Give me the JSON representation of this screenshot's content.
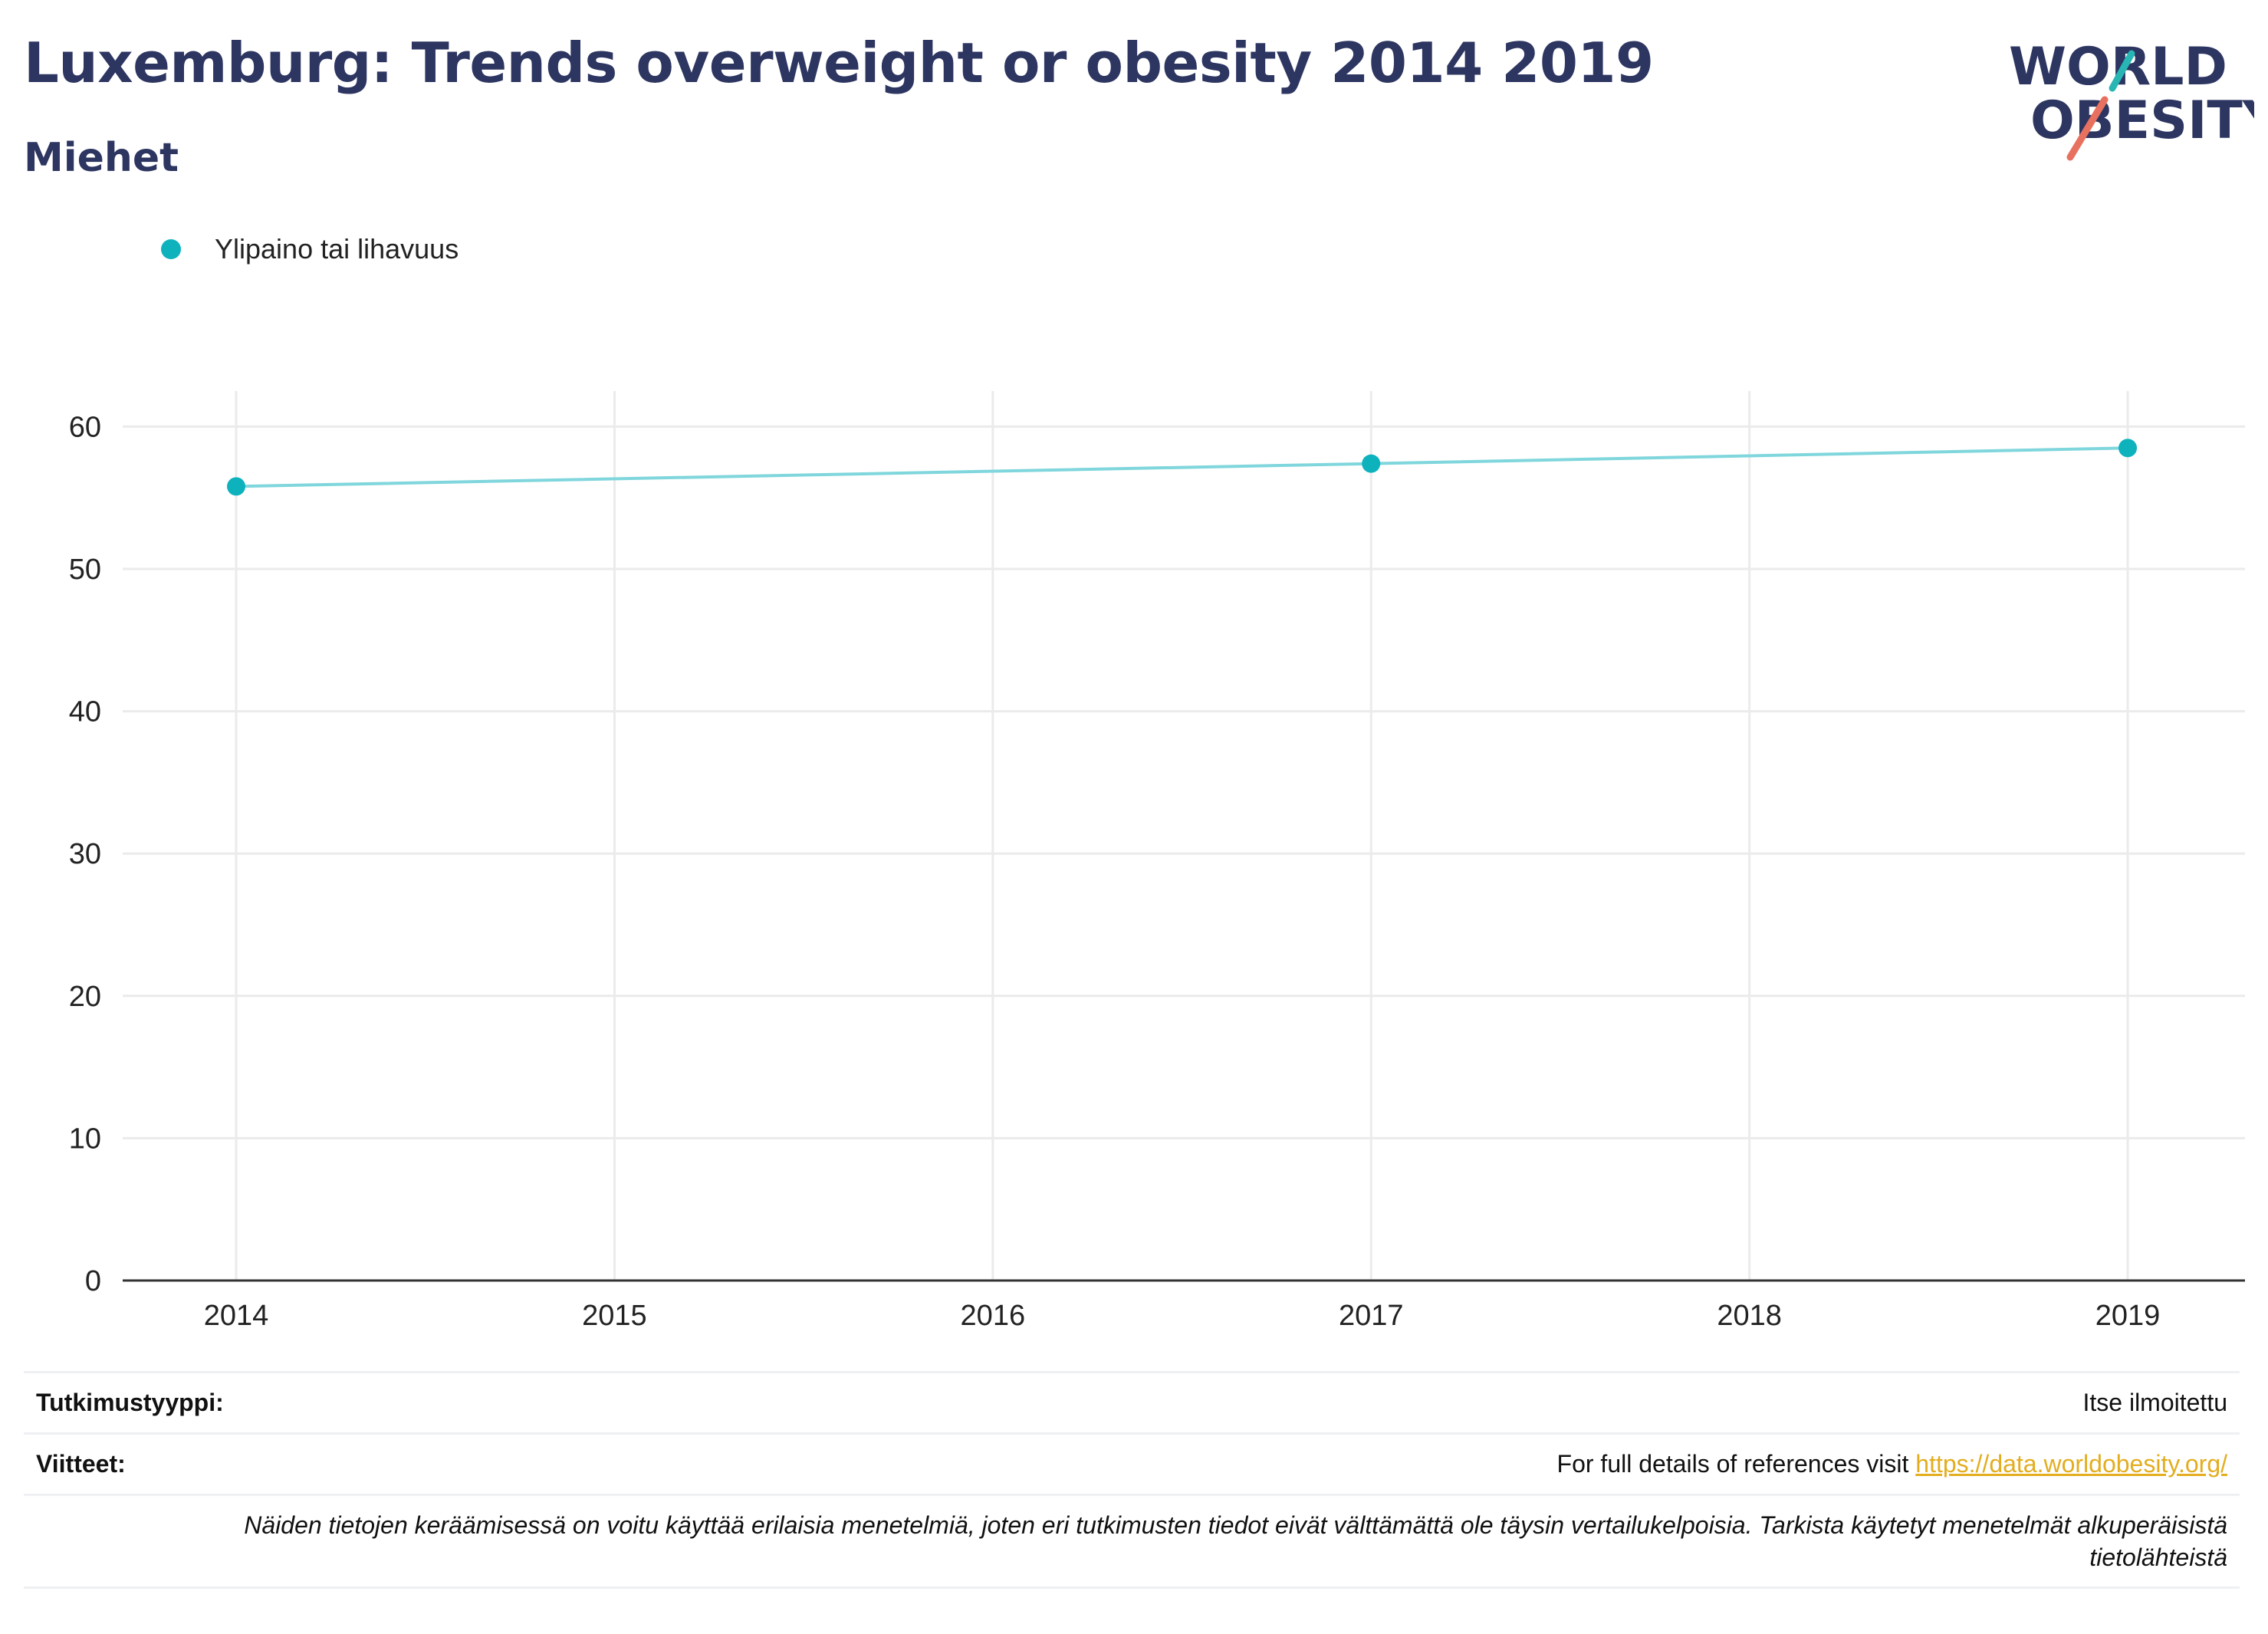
{
  "header": {
    "title": "Luxemburg: Trends overweight or obesity 2014 2019",
    "subtitle": "Miehet"
  },
  "logo": {
    "line1": "WORLD",
    "line2": "OBESITY",
    "colors": {
      "text": "#2d3561",
      "slash_teal": "#27b6b4",
      "slash_coral": "#e8705f"
    }
  },
  "legend": {
    "items": [
      {
        "label": "Ylipaino tai lihavuus",
        "color": "#0db2bd"
      }
    ]
  },
  "chart_data": {
    "type": "line",
    "title": "",
    "xlabel": "",
    "ylabel": "",
    "x": [
      2014,
      2017,
      2019
    ],
    "series": [
      {
        "name": "Ylipaino tai lihavuus",
        "values": [
          55.8,
          57.4,
          58.5
        ],
        "color": "#0db2bd",
        "line_color": "#7fd6dc"
      }
    ],
    "x_ticks": [
      2014,
      2015,
      2016,
      2017,
      2018,
      2019
    ],
    "y_ticks": [
      0,
      10,
      20,
      30,
      40,
      50,
      60
    ],
    "xlim": [
      2013.7,
      2019.31
    ],
    "ylim": [
      0,
      62.5
    ],
    "grid": true,
    "legend_position": "top-left"
  },
  "footer": {
    "study_type_label": "Tutkimustyyppi:",
    "study_type_value": "Itse ilmoitettu",
    "references_label": "Viitteet:",
    "references_text": "For full details of references visit ",
    "references_link": "https://data.worldobesity.org/",
    "note": "Näiden tietojen keräämisessä on voitu käyttää erilaisia menetelmiä, joten eri tutkimusten tiedot eivät välttämättä ole täysin vertailukelpoisia. Tarkista käytetyt menetelmät alkuperäisistä tietolähteistä"
  }
}
